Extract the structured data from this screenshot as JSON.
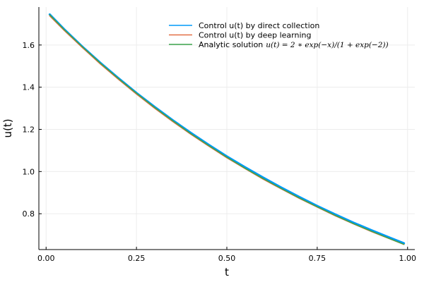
{
  "chart_data": {
    "type": "line",
    "title": "",
    "xlabel": "t",
    "ylabel": "u(t)",
    "xlim": [
      -0.02,
      1.02
    ],
    "ylim": [
      0.63,
      1.78
    ],
    "xticks": [
      0.0,
      0.25,
      0.5,
      0.75,
      1.0
    ],
    "xtick_labels": [
      "0.00",
      "0.25",
      "0.50",
      "0.75",
      "1.00"
    ],
    "yticks": [
      0.8,
      1.0,
      1.2,
      1.4,
      1.6
    ],
    "ytick_labels": [
      "0.8",
      "1.0",
      "1.2",
      "1.4",
      "1.6"
    ],
    "grid": true,
    "legend_position": "top-right",
    "series": [
      {
        "name": "Control u(t) by direct collection",
        "color": "#009af9",
        "x": [
          0.01,
          0.05,
          0.1,
          0.15,
          0.2,
          0.25,
          0.3,
          0.35,
          0.4,
          0.45,
          0.5,
          0.55,
          0.6,
          0.65,
          0.7,
          0.75,
          0.8,
          0.85,
          0.9,
          0.95,
          0.99
        ],
        "y": [
          1.745,
          1.675,
          1.593,
          1.516,
          1.443,
          1.373,
          1.307,
          1.244,
          1.184,
          1.127,
          1.072,
          1.021,
          0.972,
          0.925,
          0.88,
          0.837,
          0.797,
          0.758,
          0.722,
          0.687,
          0.66
        ]
      },
      {
        "name": "Control u(t) by deep learning",
        "color": "#e26f46",
        "x": [
          0.01,
          0.05,
          0.1,
          0.15,
          0.2,
          0.25,
          0.3,
          0.35,
          0.4,
          0.45,
          0.5,
          0.55,
          0.6,
          0.65,
          0.7,
          0.75,
          0.8,
          0.85,
          0.9,
          0.95,
          0.99
        ],
        "y": [
          1.738,
          1.669,
          1.588,
          1.51,
          1.437,
          1.367,
          1.3,
          1.237,
          1.177,
          1.12,
          1.065,
          1.014,
          0.964,
          0.918,
          0.873,
          0.831,
          0.79,
          0.752,
          0.715,
          0.681,
          0.654
        ]
      },
      {
        "name": "Analytic solution",
        "name_math": "u(t) = 2 ∗ exp(−x)/(1 + exp(−2))",
        "color": "#3da44d",
        "x": [
          0.01,
          0.05,
          0.1,
          0.15,
          0.2,
          0.25,
          0.3,
          0.35,
          0.4,
          0.45,
          0.5,
          0.55,
          0.6,
          0.65,
          0.7,
          0.75,
          0.8,
          0.85,
          0.9,
          0.95,
          0.99
        ],
        "y": [
          1.743,
          1.673,
          1.592,
          1.514,
          1.441,
          1.371,
          1.304,
          1.241,
          1.18,
          1.123,
          1.068,
          1.016,
          0.967,
          0.92,
          0.875,
          0.833,
          0.792,
          0.753,
          0.717,
          0.682,
          0.655
        ]
      }
    ]
  }
}
